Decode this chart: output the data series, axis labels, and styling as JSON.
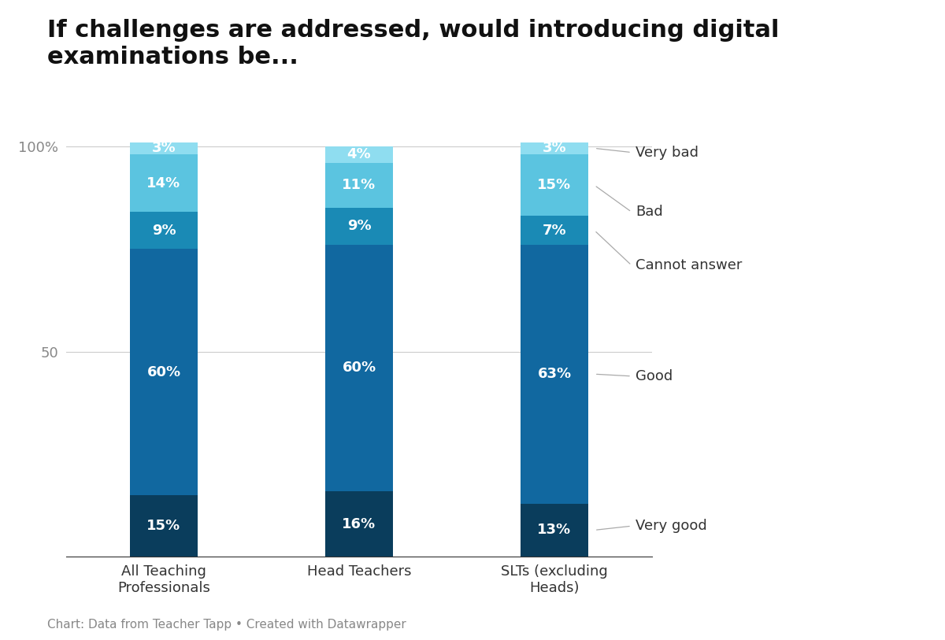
{
  "title": "If challenges are addressed, would introducing digital\nexaminations be...",
  "categories": [
    "All Teaching\nProfessionals",
    "Head Teachers",
    "SLTs (excluding\nHeads)"
  ],
  "segments": [
    "Very good",
    "Good",
    "Cannot answer",
    "Bad",
    "Very bad"
  ],
  "values": {
    "All Teaching\nProfessionals": [
      15,
      60,
      9,
      14,
      3
    ],
    "Head Teachers": [
      16,
      60,
      9,
      11,
      4
    ],
    "SLTs (excluding\nHeads)": [
      13,
      63,
      7,
      15,
      3
    ]
  },
  "colors": {
    "Very good": "#0a3d5c",
    "Good": "#1168a0",
    "Cannot answer": "#1a8ab5",
    "Bad": "#5bc4e0",
    "Very bad": "#8fddf0"
  },
  "ylabel_ticks": [
    0,
    50,
    100
  ],
  "bar_width": 0.35,
  "footnote": "Chart: Data from Teacher Tapp • Created with Datawrapper",
  "background_color": "#ffffff",
  "title_fontsize": 22,
  "tick_fontsize": 13,
  "bar_label_fontsize": 13,
  "legend_fontsize": 13,
  "footnote_fontsize": 11
}
